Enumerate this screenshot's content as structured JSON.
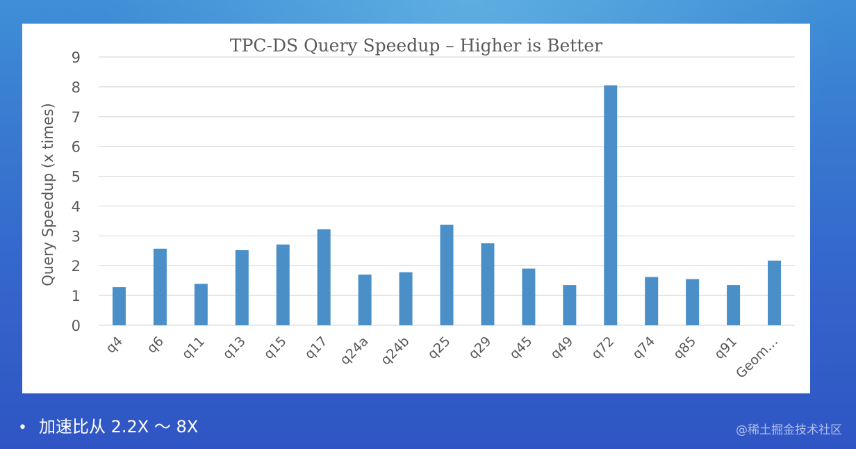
{
  "chart_data": {
    "type": "bar",
    "title": "TPC-DS Query Speedup – Higher is Better",
    "xlabel": "",
    "ylabel": "Query Speedup (x times)",
    "ylim": [
      0,
      9
    ],
    "yticks": [
      "0",
      "1",
      "2",
      "3",
      "4",
      "5",
      "6",
      "7",
      "8",
      "9"
    ],
    "grid": true,
    "categories": [
      "q4",
      "q6",
      "q11",
      "q13",
      "q15",
      "q17",
      "q24a",
      "q24b",
      "q25",
      "q29",
      "q45",
      "q49",
      "q72",
      "q74",
      "q85",
      "q91",
      "Geom…"
    ],
    "values": [
      1.28,
      2.57,
      1.39,
      2.52,
      2.71,
      3.22,
      1.7,
      1.78,
      3.37,
      2.75,
      1.9,
      1.35,
      8.05,
      1.62,
      1.55,
      1.35,
      2.17
    ],
    "colors": {
      "bar": "#4a8fc8",
      "grid": "#d9d9d9",
      "text": "#595959"
    }
  },
  "bullet": {
    "marker": "•",
    "text": "加速比从 2.2X ～ 8X"
  },
  "watermark": "@稀土掘金技术社区"
}
